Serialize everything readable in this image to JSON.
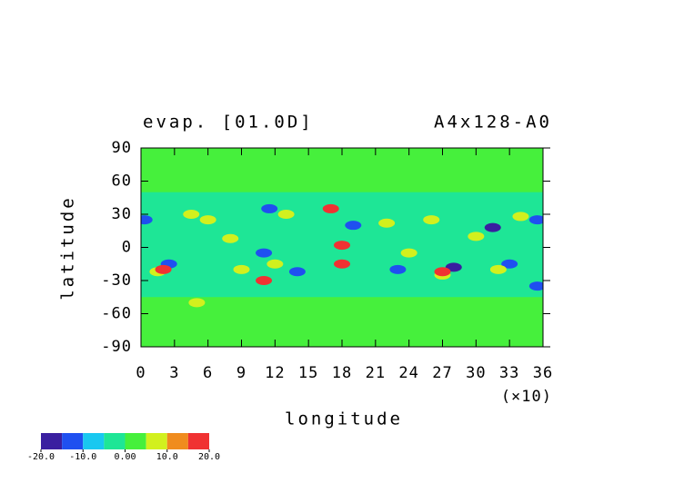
{
  "chart_data": {
    "type": "contour",
    "title": "evap. [01.0D]",
    "subtitle": "A4x128-A0",
    "x_label": "longitude",
    "x_multiplier": "(×10)",
    "y_label": "latitude",
    "xlim": [
      0,
      36
    ],
    "xticks": [
      0,
      3,
      6,
      9,
      12,
      15,
      18,
      21,
      24,
      27,
      30,
      33,
      36
    ],
    "ylim": [
      -90,
      90
    ],
    "yticks": [
      -90,
      -60,
      -30,
      0,
      30,
      60,
      90
    ],
    "base_value": -2,
    "bands": [
      {
        "lat_min": 50,
        "lat_max": 90,
        "value": 2
      },
      {
        "lat_min": -90,
        "lat_max": -45,
        "value": 2
      }
    ],
    "features": [
      {
        "lon": 0.3,
        "lat": 25,
        "value": -12
      },
      {
        "lon": 2.5,
        "lat": -15,
        "value": -12
      },
      {
        "lon": 11,
        "lat": -5,
        "value": -12
      },
      {
        "lon": 14,
        "lat": -22,
        "value": -12
      },
      {
        "lon": 19,
        "lat": 20,
        "value": -12
      },
      {
        "lon": 23,
        "lat": -20,
        "value": -12
      },
      {
        "lon": 33,
        "lat": -15,
        "value": -12
      },
      {
        "lon": 35.5,
        "lat": 25,
        "value": -12
      },
      {
        "lon": 35.5,
        "lat": -35,
        "value": -12
      },
      {
        "lon": 11.5,
        "lat": 35,
        "value": -12
      },
      {
        "lon": 31.5,
        "lat": 18,
        "value": -18
      },
      {
        "lon": 28,
        "lat": -18,
        "value": -18
      },
      {
        "lon": 4.5,
        "lat": 30,
        "value": 7
      },
      {
        "lon": 1.5,
        "lat": -22,
        "value": 7
      },
      {
        "lon": 6,
        "lat": 25,
        "value": 7
      },
      {
        "lon": 9,
        "lat": -20,
        "value": 7
      },
      {
        "lon": 13,
        "lat": 30,
        "value": 7
      },
      {
        "lon": 22,
        "lat": 22,
        "value": 7
      },
      {
        "lon": 24,
        "lat": -5,
        "value": 7
      },
      {
        "lon": 26,
        "lat": 25,
        "value": 7
      },
      {
        "lon": 27,
        "lat": -25,
        "value": 7
      },
      {
        "lon": 32,
        "lat": -20,
        "value": 7
      },
      {
        "lon": 34,
        "lat": 28,
        "value": 7
      },
      {
        "lon": 5,
        "lat": -50,
        "value": 7
      },
      {
        "lon": 12,
        "lat": -15,
        "value": 7
      },
      {
        "lon": 30,
        "lat": 10,
        "value": 7
      },
      {
        "lon": 8,
        "lat": 8,
        "value": 7
      },
      {
        "lon": 17,
        "lat": 35,
        "value": 17
      },
      {
        "lon": 2,
        "lat": -20,
        "value": 17
      },
      {
        "lon": 18,
        "lat": -15,
        "value": 17
      },
      {
        "lon": 27,
        "lat": -22,
        "value": 17
      },
      {
        "lon": 11,
        "lat": -30,
        "value": 17
      },
      {
        "lon": 18,
        "lat": 2,
        "value": 17
      }
    ],
    "colorbar": {
      "levels": [
        -20,
        -15,
        -10,
        -5,
        0,
        5,
        10,
        15,
        20
      ],
      "colors": [
        "#3a1fa0",
        "#1f50f0",
        "#19c8f0",
        "#1ee696",
        "#46f03c",
        "#d2f01e",
        "#f08c1e",
        "#f03232"
      ],
      "ticks": [
        {
          "value": -20,
          "label": "-20.0"
        },
        {
          "value": -10,
          "label": "-10.0"
        },
        {
          "value": 0,
          "label": "0.00"
        },
        {
          "value": 10,
          "label": "10.0"
        },
        {
          "value": 20,
          "label": "20.0"
        }
      ]
    }
  }
}
